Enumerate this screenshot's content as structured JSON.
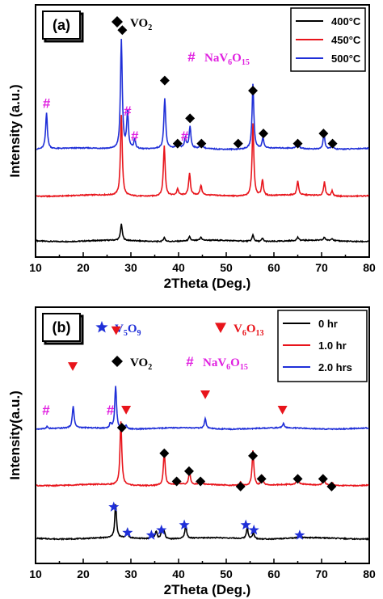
{
  "chart_data": [
    {
      "panel_label": "(a)",
      "type": "line",
      "xlabel": "2Theta (Deg.)",
      "ylabel": "Intensity (a.u.)",
      "xlim": [
        10,
        80
      ],
      "xticks": [
        "10",
        "20",
        "30",
        "40",
        "50",
        "60",
        "70",
        "80"
      ],
      "legend_position": "top-right",
      "series": [
        {
          "name": "400°C",
          "color": "#000000",
          "peaks": [
            {
              "x": 28,
              "h": 0.2
            },
            {
              "x": 37,
              "h": 0.05
            },
            {
              "x": 42.3,
              "h": 0.05
            },
            {
              "x": 44.7,
              "h": 0.04
            },
            {
              "x": 55.6,
              "h": 0.08
            },
            {
              "x": 57.6,
              "h": 0.04
            },
            {
              "x": 65,
              "h": 0.04
            },
            {
              "x": 70.6,
              "h": 0.04
            },
            {
              "x": 72.2,
              "h": 0.03
            }
          ]
        },
        {
          "name": "450°C",
          "color": "#e8141b",
          "peaks": [
            {
              "x": 28,
              "h": 1.0
            },
            {
              "x": 37,
              "h": 0.62
            },
            {
              "x": 39.8,
              "h": 0.08
            },
            {
              "x": 42.3,
              "h": 0.27
            },
            {
              "x": 44.7,
              "h": 0.12
            },
            {
              "x": 55.6,
              "h": 0.9
            },
            {
              "x": 57.6,
              "h": 0.2
            },
            {
              "x": 65,
              "h": 0.17
            },
            {
              "x": 70.6,
              "h": 0.17
            },
            {
              "x": 72.2,
              "h": 0.06
            }
          ]
        },
        {
          "name": "500°C",
          "color": "#1f2fd8",
          "peaks": [
            {
              "x": 12.3,
              "h": 0.45
            },
            {
              "x": 28,
              "h": 1.35
            },
            {
              "x": 29.3,
              "h": 0.45
            },
            {
              "x": 30.8,
              "h": 0.12
            },
            {
              "x": 37.1,
              "h": 0.62
            },
            {
              "x": 39.8,
              "h": 0.08
            },
            {
              "x": 41.4,
              "h": 0.12
            },
            {
              "x": 42.4,
              "h": 0.27
            },
            {
              "x": 44.8,
              "h": 0.1
            },
            {
              "x": 55.6,
              "h": 0.8
            },
            {
              "x": 57.7,
              "h": 0.13
            },
            {
              "x": 65,
              "h": 0.1
            },
            {
              "x": 70.5,
              "h": 0.2
            },
            {
              "x": 72.2,
              "h": 0.06
            }
          ]
        }
      ],
      "phase_legend": [
        {
          "symbol": "diamond",
          "color": "#000000",
          "label": "VO",
          "sub": "2"
        },
        {
          "symbol": "hash",
          "color": "#e020e0",
          "label": "NaV",
          "sub": "6",
          "label2": "O",
          "sub2": "15"
        }
      ],
      "markers": [
        {
          "symbol": "hash",
          "color": "#e020e0",
          "x": 12.3,
          "y": 0.61
        },
        {
          "symbol": "diamond",
          "color": "#000000",
          "x": 28.2,
          "y": 0.9
        },
        {
          "symbol": "hash",
          "color": "#e020e0",
          "x": 29.3,
          "y": 0.58
        },
        {
          "symbol": "hash",
          "color": "#e020e0",
          "x": 30.8,
          "y": 0.48
        },
        {
          "symbol": "diamond",
          "color": "#000000",
          "x": 37.1,
          "y": 0.7
        },
        {
          "symbol": "hash",
          "color": "#e020e0",
          "x": 41.3,
          "y": 0.48
        },
        {
          "symbol": "diamond",
          "color": "#000000",
          "x": 39.8,
          "y": 0.45
        },
        {
          "symbol": "diamond",
          "color": "#000000",
          "x": 42.4,
          "y": 0.55
        },
        {
          "symbol": "diamond",
          "color": "#000000",
          "x": 44.8,
          "y": 0.45
        },
        {
          "symbol": "diamond",
          "color": "#000000",
          "x": 52.5,
          "y": 0.45
        },
        {
          "symbol": "diamond",
          "color": "#000000",
          "x": 55.6,
          "y": 0.66
        },
        {
          "symbol": "diamond",
          "color": "#000000",
          "x": 57.8,
          "y": 0.49
        },
        {
          "symbol": "diamond",
          "color": "#000000",
          "x": 65,
          "y": 0.45
        },
        {
          "symbol": "diamond",
          "color": "#000000",
          "x": 70.4,
          "y": 0.49
        },
        {
          "symbol": "diamond",
          "color": "#000000",
          "x": 72.3,
          "y": 0.45
        }
      ]
    },
    {
      "panel_label": "(b)",
      "type": "line",
      "xlabel": "2Theta (Deg.)",
      "ylabel": "Intensity(a.u.)",
      "xlim": [
        10,
        80
      ],
      "xticks": [
        "10",
        "20",
        "30",
        "40",
        "50",
        "60",
        "70",
        "80"
      ],
      "legend_position": "top-right",
      "series": [
        {
          "name": "0 hr",
          "color": "#000000",
          "peaks": [
            {
              "x": 26.8,
              "h": 0.55
            },
            {
              "x": 29.2,
              "h": 0.12
            },
            {
              "x": 34.4,
              "h": 0.08
            },
            {
              "x": 35.3,
              "h": 0.12
            },
            {
              "x": 36.5,
              "h": 0.15
            },
            {
              "x": 37,
              "h": 0.1
            },
            {
              "x": 41.5,
              "h": 0.22
            },
            {
              "x": 54.4,
              "h": 0.18
            },
            {
              "x": 55.7,
              "h": 0.1
            },
            {
              "x": 65.4,
              "h": 0.06
            }
          ]
        },
        {
          "name": "1.0 hr",
          "color": "#e8141b",
          "peaks": [
            {
              "x": 27.9,
              "h": 1.05
            },
            {
              "x": 37,
              "h": 0.55
            },
            {
              "x": 39.8,
              "h": 0.1
            },
            {
              "x": 42.3,
              "h": 0.2
            },
            {
              "x": 44.7,
              "h": 0.1
            },
            {
              "x": 53,
              "h": 0.06
            },
            {
              "x": 55.6,
              "h": 0.58
            },
            {
              "x": 57.6,
              "h": 0.15
            },
            {
              "x": 65,
              "h": 0.12
            },
            {
              "x": 70.5,
              "h": 0.13
            },
            {
              "x": 72.2,
              "h": 0.05
            }
          ]
        },
        {
          "name": "2.0 hrs",
          "color": "#1f2fd8",
          "peaks": [
            {
              "x": 12.4,
              "h": 0.04
            },
            {
              "x": 17.9,
              "h": 0.36
            },
            {
              "x": 25.7,
              "h": 0.08
            },
            {
              "x": 26.8,
              "h": 0.7
            },
            {
              "x": 29,
              "h": 0.06
            },
            {
              "x": 45.6,
              "h": 0.16
            },
            {
              "x": 62,
              "h": 0.07
            }
          ]
        }
      ],
      "phase_legend": [
        {
          "symbol": "star",
          "color": "#1f2fd8",
          "label": "V",
          "sub": "5",
          "label2": "O",
          "sub2": "9"
        },
        {
          "symbol": "triangle",
          "color": "#e8141b",
          "label": "V",
          "sub": "6",
          "label2": "O",
          "sub2": "13"
        },
        {
          "symbol": "diamond",
          "color": "#000000",
          "label": "VO",
          "sub": "2"
        },
        {
          "symbol": "hash",
          "color": "#e020e0",
          "label": "NaV",
          "sub": "6",
          "label2": "O",
          "sub2": "15"
        }
      ],
      "markers": [
        {
          "symbol": "hash",
          "color": "#e020e0",
          "x": 12.2,
          "y": 0.6
        },
        {
          "symbol": "triangle",
          "color": "#e8141b",
          "x": 17.8,
          "y": 0.77
        },
        {
          "symbol": "hash",
          "color": "#e020e0",
          "x": 25.7,
          "y": 0.6
        },
        {
          "symbol": "triangle",
          "color": "#e8141b",
          "x": 26.9,
          "y": 0.91
        },
        {
          "symbol": "triangle",
          "color": "#e8141b",
          "x": 29,
          "y": 0.6
        },
        {
          "symbol": "triangle",
          "color": "#e8141b",
          "x": 45.6,
          "y": 0.66
        },
        {
          "symbol": "triangle",
          "color": "#e8141b",
          "x": 61.8,
          "y": 0.6
        },
        {
          "symbol": "diamond",
          "color": "#000000",
          "x": 28.1,
          "y": 0.53
        },
        {
          "symbol": "diamond",
          "color": "#000000",
          "x": 37,
          "y": 0.43
        },
        {
          "symbol": "diamond",
          "color": "#000000",
          "x": 39.6,
          "y": 0.32
        },
        {
          "symbol": "diamond",
          "color": "#000000",
          "x": 42.2,
          "y": 0.36
        },
        {
          "symbol": "diamond",
          "color": "#000000",
          "x": 44.6,
          "y": 0.32
        },
        {
          "symbol": "diamond",
          "color": "#000000",
          "x": 53,
          "y": 0.3
        },
        {
          "symbol": "diamond",
          "color": "#000000",
          "x": 55.6,
          "y": 0.42
        },
        {
          "symbol": "diamond",
          "color": "#000000",
          "x": 57.4,
          "y": 0.33
        },
        {
          "symbol": "diamond",
          "color": "#000000",
          "x": 65,
          "y": 0.33
        },
        {
          "symbol": "diamond",
          "color": "#000000",
          "x": 70.3,
          "y": 0.33
        },
        {
          "symbol": "diamond",
          "color": "#000000",
          "x": 72.1,
          "y": 0.3
        },
        {
          "symbol": "star",
          "color": "#1f2fd8",
          "x": 26.4,
          "y": 0.22
        },
        {
          "symbol": "star",
          "color": "#1f2fd8",
          "x": 29.3,
          "y": 0.12
        },
        {
          "symbol": "star",
          "color": "#1f2fd8",
          "x": 34.3,
          "y": 0.11
        },
        {
          "symbol": "star",
          "color": "#1f2fd8",
          "x": 36.4,
          "y": 0.13
        },
        {
          "symbol": "star",
          "color": "#1f2fd8",
          "x": 41.2,
          "y": 0.15
        },
        {
          "symbol": "star",
          "color": "#1f2fd8",
          "x": 54.1,
          "y": 0.15
        },
        {
          "symbol": "star",
          "color": "#1f2fd8",
          "x": 55.8,
          "y": 0.13
        },
        {
          "symbol": "star",
          "color": "#1f2fd8",
          "x": 65.4,
          "y": 0.11
        }
      ]
    }
  ]
}
